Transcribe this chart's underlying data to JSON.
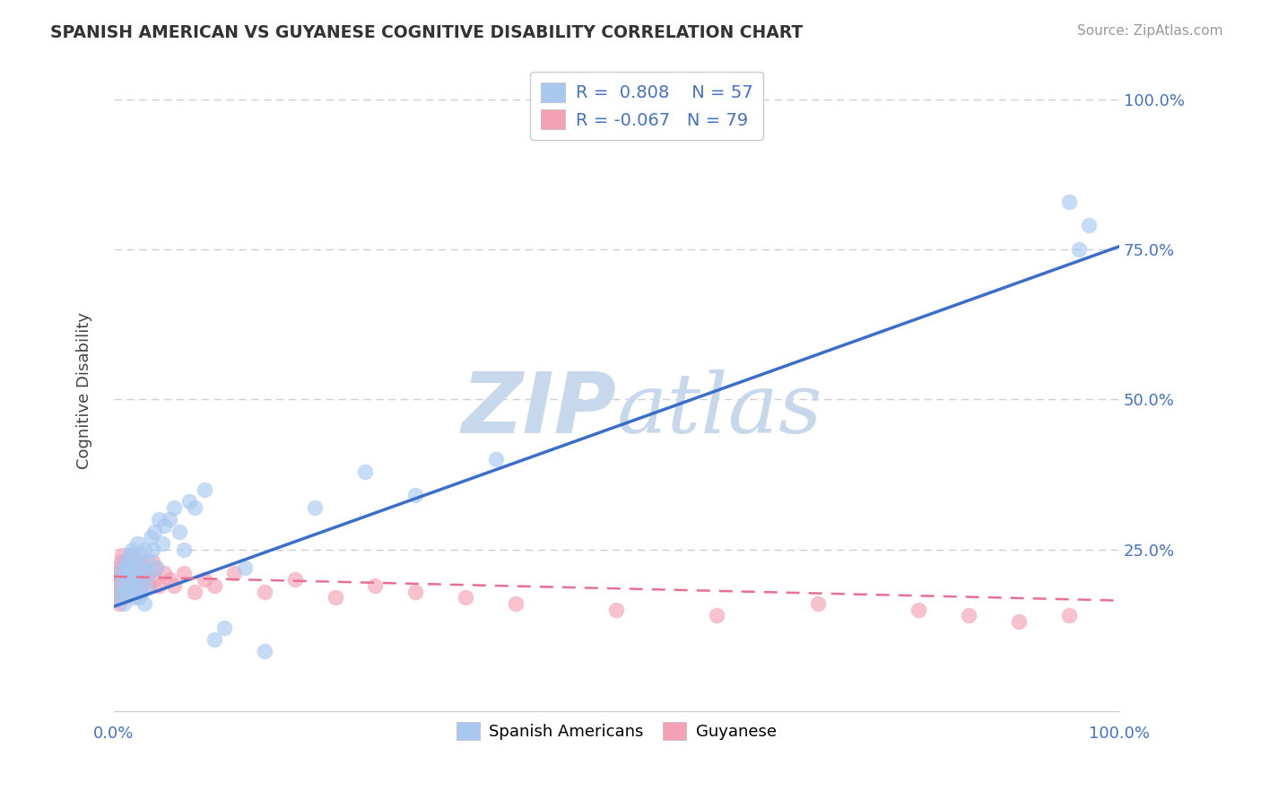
{
  "title": "SPANISH AMERICAN VS GUYANESE COGNITIVE DISABILITY CORRELATION CHART",
  "source": "Source: ZipAtlas.com",
  "ylabel": "Cognitive Disability",
  "xlim": [
    0,
    1.0
  ],
  "ylim": [
    -0.02,
    1.05
  ],
  "color_blue": "#A8C8F0",
  "color_pink": "#F4A0B5",
  "color_blue_line": "#3B6EC8",
  "color_pink_line": "#E87090",
  "color_blue_text": "#4472C4",
  "background_color": "#FFFFFF",
  "grid_color": "#C8D0DC",
  "watermark_color": "#C8D8EC",
  "blue_scatter_x": [
    0.005,
    0.007,
    0.008,
    0.009,
    0.01,
    0.01,
    0.011,
    0.012,
    0.013,
    0.014,
    0.015,
    0.015,
    0.016,
    0.017,
    0.018,
    0.019,
    0.02,
    0.02,
    0.021,
    0.022,
    0.023,
    0.024,
    0.025,
    0.025,
    0.026,
    0.027,
    0.028,
    0.03,
    0.03,
    0.032,
    0.034,
    0.035,
    0.037,
    0.038,
    0.04,
    0.042,
    0.045,
    0.048,
    0.05,
    0.055,
    0.06,
    0.065,
    0.07,
    0.075,
    0.08,
    0.09,
    0.1,
    0.11,
    0.13,
    0.15,
    0.2,
    0.25,
    0.3,
    0.38,
    0.95,
    0.96,
    0.97
  ],
  "blue_scatter_y": [
    0.17,
    0.19,
    0.21,
    0.18,
    0.16,
    0.22,
    0.2,
    0.23,
    0.18,
    0.21,
    0.19,
    0.24,
    0.22,
    0.2,
    0.25,
    0.18,
    0.23,
    0.17,
    0.21,
    0.19,
    0.26,
    0.22,
    0.24,
    0.17,
    0.2,
    0.18,
    0.22,
    0.16,
    0.25,
    0.19,
    0.23,
    0.21,
    0.27,
    0.25,
    0.28,
    0.22,
    0.3,
    0.26,
    0.29,
    0.3,
    0.32,
    0.28,
    0.25,
    0.33,
    0.32,
    0.35,
    0.1,
    0.12,
    0.22,
    0.08,
    0.32,
    0.38,
    0.34,
    0.4,
    0.83,
    0.75,
    0.79
  ],
  "pink_scatter_x": [
    0.003,
    0.004,
    0.005,
    0.005,
    0.006,
    0.007,
    0.007,
    0.008,
    0.008,
    0.009,
    0.01,
    0.01,
    0.011,
    0.011,
    0.012,
    0.012,
    0.013,
    0.013,
    0.014,
    0.014,
    0.015,
    0.015,
    0.016,
    0.016,
    0.017,
    0.017,
    0.018,
    0.018,
    0.019,
    0.019,
    0.02,
    0.02,
    0.021,
    0.022,
    0.023,
    0.024,
    0.025,
    0.025,
    0.026,
    0.027,
    0.028,
    0.029,
    0.03,
    0.032,
    0.034,
    0.035,
    0.038,
    0.04,
    0.042,
    0.045,
    0.05,
    0.055,
    0.06,
    0.07,
    0.08,
    0.09,
    0.1,
    0.12,
    0.15,
    0.18,
    0.22,
    0.26,
    0.3,
    0.35,
    0.4,
    0.5,
    0.6,
    0.7,
    0.8,
    0.85,
    0.9,
    0.95,
    0.003,
    0.004,
    0.005,
    0.006,
    0.007,
    0.008,
    0.009
  ],
  "pink_scatter_y": [
    0.2,
    0.21,
    0.19,
    0.22,
    0.2,
    0.23,
    0.18,
    0.21,
    0.24,
    0.2,
    0.22,
    0.19,
    0.21,
    0.23,
    0.2,
    0.22,
    0.19,
    0.21,
    0.23,
    0.2,
    0.22,
    0.19,
    0.21,
    0.24,
    0.2,
    0.22,
    0.19,
    0.21,
    0.23,
    0.2,
    0.22,
    0.19,
    0.21,
    0.2,
    0.22,
    0.19,
    0.21,
    0.23,
    0.2,
    0.22,
    0.19,
    0.21,
    0.2,
    0.22,
    0.21,
    0.19,
    0.23,
    0.2,
    0.22,
    0.19,
    0.21,
    0.2,
    0.19,
    0.21,
    0.18,
    0.2,
    0.19,
    0.21,
    0.18,
    0.2,
    0.17,
    0.19,
    0.18,
    0.17,
    0.16,
    0.15,
    0.14,
    0.16,
    0.15,
    0.14,
    0.13,
    0.14,
    0.17,
    0.18,
    0.16,
    0.19,
    0.21,
    0.18,
    0.2
  ],
  "blue_line_x": [
    0.0,
    1.0
  ],
  "blue_line_y": [
    0.155,
    0.755
  ],
  "pink_line_x": [
    0.0,
    1.0
  ],
  "pink_line_y": [
    0.205,
    0.165
  ]
}
